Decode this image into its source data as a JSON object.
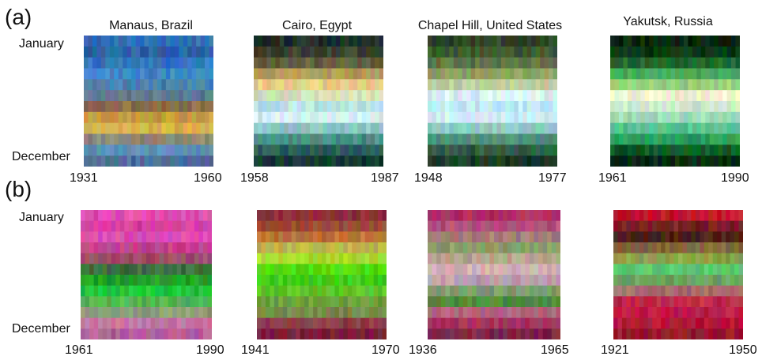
{
  "figure": {
    "row_a_tag": "(a)",
    "row_b_tag": "(b)"
  },
  "chart_data": [
    {
      "type": "heatmap",
      "panel": "(a)",
      "title": "Manaus, Brazil",
      "y_start_label": "January",
      "y_end_label": "December",
      "x_start_label": "1931",
      "x_end_label": "1960",
      "x_range": [
        1931,
        1960
      ],
      "rows": 12,
      "cols": 30,
      "row_colors": [
        "#2f6fb6",
        "#2b63a8",
        "#2f75bf",
        "#3e86c8",
        "#4a7fb0",
        "#5d7b8d",
        "#8a6d4d",
        "#c79a43",
        "#d9b14c",
        "#8e8a74",
        "#5f8fb6",
        "#4b6e98"
      ]
    },
    {
      "type": "heatmap",
      "panel": "(a)",
      "title": "Cairo, Egypt",
      "x_start_label": "1958",
      "x_end_label": "1987",
      "x_range": [
        1958,
        1987
      ],
      "rows": 12,
      "cols": 30,
      "row_colors": [
        "#1f2f2a",
        "#39412f",
        "#66603d",
        "#b49a58",
        "#e5cf84",
        "#d9e2b8",
        "#b7e4e6",
        "#d6f0ee",
        "#8cc8c3",
        "#4c8c86",
        "#2c5d59",
        "#183834"
      ]
    },
    {
      "type": "heatmap",
      "panel": "(a)",
      "title": "Chapel Hill, United States",
      "x_start_label": "1948",
      "x_end_label": "1977",
      "x_range": [
        1948,
        1977
      ],
      "rows": 12,
      "cols": 30,
      "row_colors": [
        "#2f4328",
        "#3f5a30",
        "#5d7443",
        "#8f9f62",
        "#c2cf9c",
        "#d9eef4",
        "#bde9f4",
        "#cfeff8",
        "#8dc9c3",
        "#4f8f77",
        "#2f5e43",
        "#1b3a24"
      ]
    },
    {
      "type": "heatmap",
      "panel": "(a)",
      "title": "Yakutsk, Russia",
      "x_start_label": "1961",
      "x_end_label": "1990",
      "x_range": [
        1961,
        1990
      ],
      "rows": 12,
      "cols": 30,
      "row_colors": [
        "#07280e",
        "#0d3a16",
        "#1e6a2f",
        "#4aa85b",
        "#9bcf7a",
        "#f0f2d2",
        "#cdeccf",
        "#9fdcb9",
        "#5ac58f",
        "#2d9b5b",
        "#0f5a25",
        "#072d10"
      ]
    },
    {
      "type": "heatmap",
      "panel": "(b)",
      "title": "",
      "y_start_label": "January",
      "y_end_label": "December",
      "x_start_label": "1961",
      "x_end_label": "1990",
      "x_range": [
        1961,
        1990
      ],
      "rows": 12,
      "cols": 30,
      "row_colors": [
        "#e04ab3",
        "#d83fa4",
        "#d84bb2",
        "#c54190",
        "#9c4c6a",
        "#3f6b3f",
        "#1fa12a",
        "#23c43c",
        "#56b654",
        "#8f9a76",
        "#c278a4",
        "#b45d97"
      ]
    },
    {
      "type": "heatmap",
      "panel": "(b)",
      "title": "",
      "x_start_label": "1941",
      "x_end_label": "1970",
      "x_range": [
        1941,
        1970
      ],
      "rows": 12,
      "cols": 30,
      "row_colors": [
        "#8e2b36",
        "#9a4a36",
        "#bd6f33",
        "#c0b44a",
        "#a6dd2e",
        "#52db14",
        "#3fcf1c",
        "#5bc42a",
        "#6da03b",
        "#7a8a49",
        "#8e3b47",
        "#7b1f3a"
      ]
    },
    {
      "type": "heatmap",
      "panel": "(b)",
      "title": "",
      "x_start_label": "1936",
      "x_end_label": "1965",
      "x_range": [
        1936,
        1965
      ],
      "rows": 12,
      "cols": 30,
      "row_colors": [
        "#b03063",
        "#b64c77",
        "#a57f76",
        "#8aa067",
        "#b4a58d",
        "#d0b3b7",
        "#bd9eb0",
        "#7e9d70",
        "#4f8b3d",
        "#b0677f",
        "#a8325e",
        "#7e2348"
      ]
    },
    {
      "type": "heatmap",
      "panel": "(b)",
      "title": "",
      "x_start_label": "1921",
      "x_end_label": "1950",
      "x_range": [
        1921,
        1950
      ],
      "rows": 12,
      "cols": 30,
      "row_colors": [
        "#c3192a",
        "#7b1d24",
        "#4a2119",
        "#81683a",
        "#8ba348",
        "#58c96f",
        "#6aa164",
        "#a06e6d",
        "#bf2a49",
        "#c11e45",
        "#b51537",
        "#96182d"
      ]
    }
  ]
}
